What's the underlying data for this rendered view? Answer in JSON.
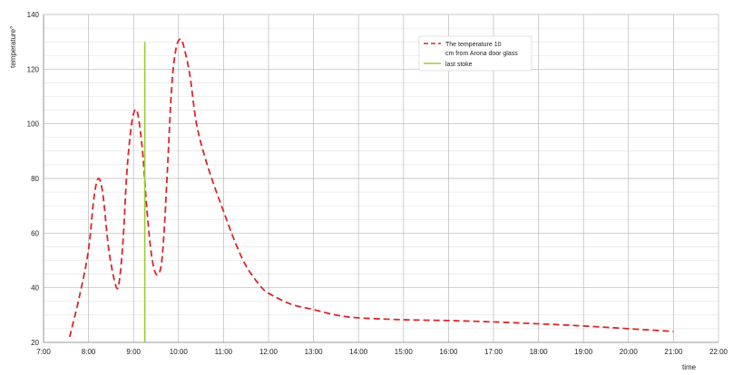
{
  "chart_data": {
    "type": "line",
    "xlabel": "time",
    "ylabel": "temperature°",
    "xlim": [
      7,
      22
    ],
    "ylim": [
      20,
      140
    ],
    "grid": "on",
    "legend_position": "top-center",
    "x_tick_labels": [
      "7:00",
      "8:00",
      "9:00",
      "10:00",
      "11:00",
      "12:00",
      "13:00",
      "14:00",
      "15:00",
      "16:00",
      "17:00",
      "18:00",
      "19:00",
      "20:00",
      "21:00",
      "22:00"
    ],
    "y_tick_labels": [
      "20",
      "40",
      "60",
      "80",
      "100",
      "120",
      "140"
    ],
    "series": [
      {
        "name_lines": [
          "The temperature 10",
          "cm from Arona door glass"
        ],
        "style": "dashed",
        "color": "#d9262b",
        "x": [
          7.58,
          7.8,
          8.0,
          8.12,
          8.22,
          8.32,
          8.45,
          8.6,
          8.68,
          8.77,
          8.85,
          8.95,
          9.03,
          9.1,
          9.2,
          9.3,
          9.4,
          9.5,
          9.6,
          9.67,
          9.75,
          9.85,
          9.95,
          10.05,
          10.12,
          10.25,
          10.4,
          10.6,
          10.8,
          11.0,
          11.25,
          11.5,
          11.8,
          12.0,
          12.5,
          13.0,
          13.5,
          14.0,
          15.0,
          16.0,
          17.0,
          18.0,
          19.0,
          20.0,
          21.0
        ],
        "y": [
          22,
          37,
          54,
          73,
          80,
          74,
          54,
          41,
          42,
          58,
          82,
          99,
          105,
          103,
          90,
          68,
          52,
          45,
          47,
          58,
          82,
          114,
          128,
          131,
          128,
          118,
          100,
          87,
          77,
          68,
          57,
          48,
          41,
          38,
          34,
          32,
          30,
          29,
          28.3,
          28,
          27.5,
          26.8,
          26,
          25,
          24
        ]
      },
      {
        "name": "last stoke",
        "style": "solid",
        "color": "#9acd32",
        "x": [
          9.25,
          9.25
        ],
        "y": [
          20,
          130
        ]
      }
    ]
  }
}
